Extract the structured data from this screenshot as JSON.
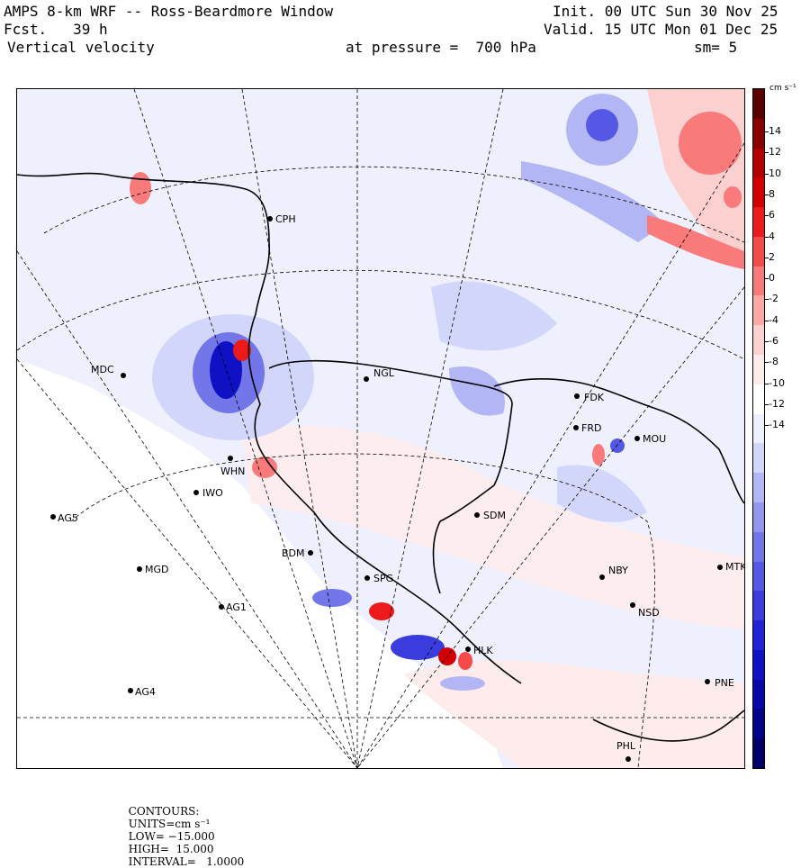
{
  "header": {
    "title": "AMPS 8-km WRF -- Ross-Beardmore Window",
    "forecast": "Fcst.   39 h",
    "field": "Vertical velocity",
    "pressure": "at pressure =  700 hPa",
    "init": "Init. 00 UTC Sun 30 Nov 25",
    "valid": "Valid. 15 UTC Mon 01 Dec 25",
    "smoothing": "sm= 5"
  },
  "colorbar": {
    "units_label": "cm s⁻¹",
    "ticks": [
      "14",
      "12",
      "10",
      "8",
      "6",
      "4",
      "2",
      "0",
      "-2",
      "-4",
      "-6",
      "-8",
      "-10",
      "-12",
      "-14"
    ],
    "colors": [
      "#5a0000",
      "#8a0000",
      "#b40000",
      "#d40000",
      "#ec1a1a",
      "#f44a4a",
      "#f87a7a",
      "#fca6a6",
      "#fdd0d0",
      "#feecec",
      "#ffffff",
      "#eef0fd",
      "#d2d6fa",
      "#b2b6f4",
      "#9296ee",
      "#7276e8",
      "#5458e4",
      "#3a3cde",
      "#2222d6",
      "#1010c4",
      "#0808a8",
      "#04048a",
      "#000068"
    ]
  },
  "stations": [
    {
      "code": "CPH"
    },
    {
      "code": "MDC"
    },
    {
      "code": "NGL"
    },
    {
      "code": "FDK"
    },
    {
      "code": "FRD"
    },
    {
      "code": "MOU"
    },
    {
      "code": "WHN"
    },
    {
      "code": "IWO"
    },
    {
      "code": "AG5"
    },
    {
      "code": "SDM"
    },
    {
      "code": "BDM"
    },
    {
      "code": "MGD"
    },
    {
      "code": "SPG"
    },
    {
      "code": "NBY"
    },
    {
      "code": "MTK"
    },
    {
      "code": "AG1"
    },
    {
      "code": "NSD"
    },
    {
      "code": "HLK"
    },
    {
      "code": "AG4"
    },
    {
      "code": "PNE"
    },
    {
      "code": "PHL"
    }
  ],
  "footer": {
    "contours": "CONTOURS:",
    "units": "UNITS=cm s⁻¹",
    "low": "LOW= −15.000",
    "high": "HIGH=  15.000",
    "interval": "INTERVAL=   1.0000"
  }
}
